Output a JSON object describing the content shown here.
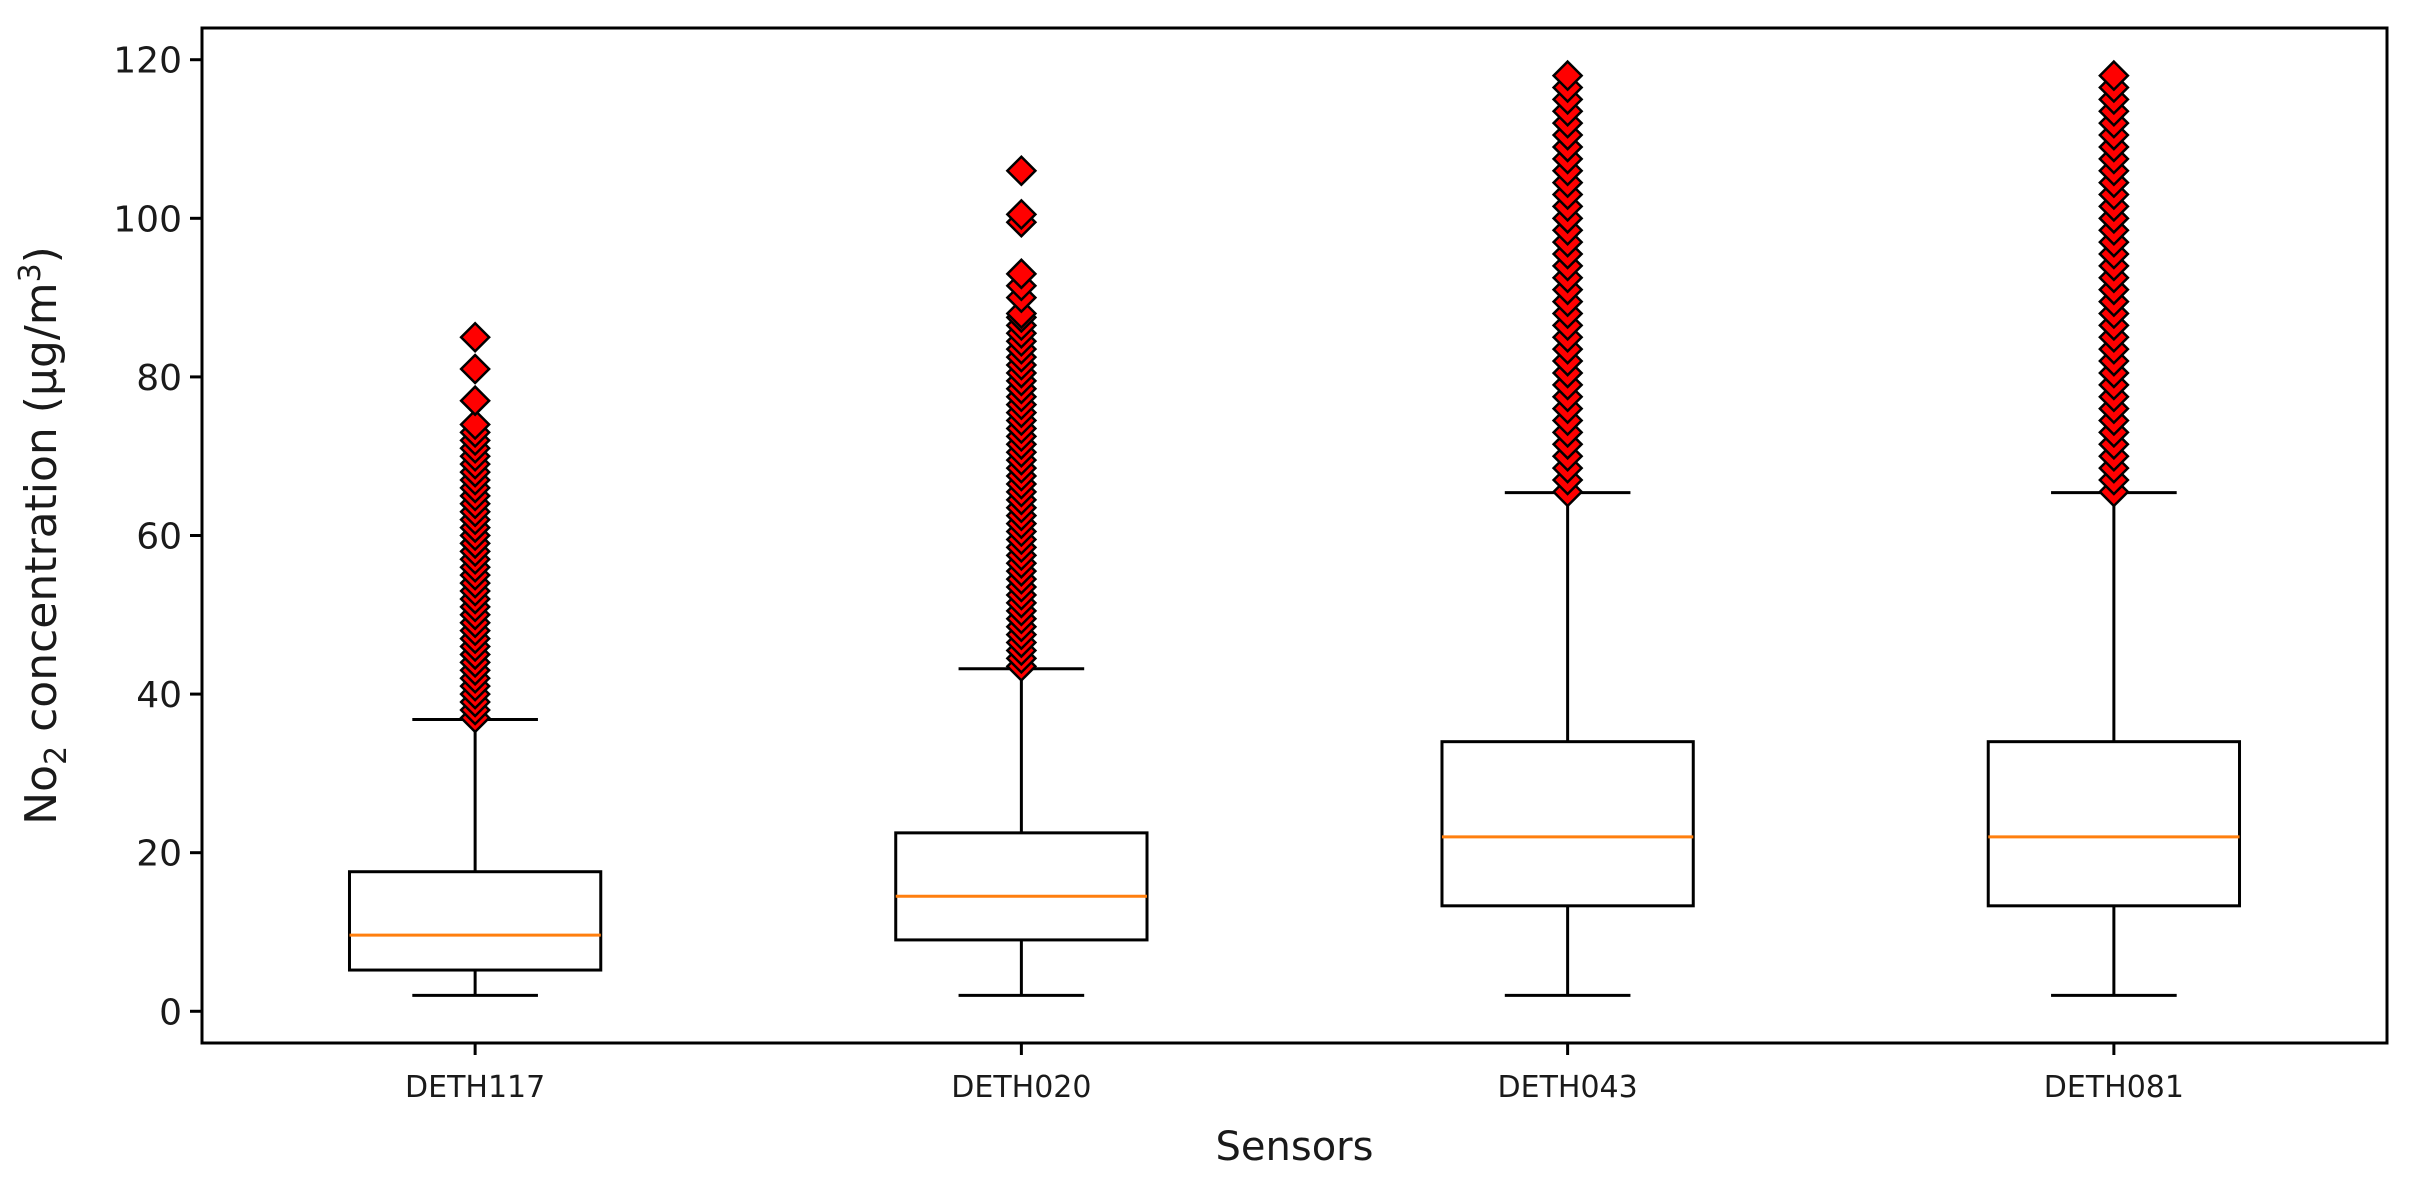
{
  "chart_data": {
    "type": "box",
    "xlabel": "Sensors",
    "ylabel": {
      "prefix": "No",
      "sub": "2",
      "middle": " concentration (μg/m",
      "sup": "3",
      "suffix": ")"
    },
    "ylim": [
      -4,
      124
    ],
    "yticks": [
      0,
      20,
      40,
      60,
      80,
      100,
      120
    ],
    "grid": false,
    "legend": "none",
    "colors": {
      "box": "#000000",
      "median": "#ff7f0e",
      "outlier_fill": "#ff0000",
      "outlier_edge": "#000000"
    },
    "categories": [
      "DETH117",
      "DETH020",
      "DETH043",
      "DETH081"
    ],
    "boxes": [
      {
        "label": "DETH117",
        "whisker_low": 2.0,
        "q1": 5.2,
        "median": 9.6,
        "q3": 17.6,
        "whisker_high": 36.8,
        "outliers": [
          37,
          38,
          39,
          40,
          41,
          42,
          43,
          44,
          45,
          46,
          47,
          48,
          49,
          50,
          51,
          52,
          53,
          54,
          55,
          56,
          57,
          58,
          59,
          60,
          61,
          62,
          63,
          64,
          65,
          66,
          67,
          68,
          69,
          70,
          71,
          72,
          73,
          74,
          77,
          81,
          85
        ]
      },
      {
        "label": "DETH020",
        "whisker_low": 2.0,
        "q1": 9.0,
        "median": 14.5,
        "q3": 22.5,
        "whisker_high": 43.2,
        "outliers": [
          43.5,
          44.5,
          45.5,
          46.5,
          47.5,
          48.5,
          49.5,
          50.5,
          51.5,
          52.5,
          53.5,
          54.5,
          55.5,
          56.5,
          57.5,
          58.5,
          59.5,
          60.5,
          61.5,
          62.5,
          63.5,
          64.5,
          65.5,
          66.5,
          67.5,
          68.5,
          69.5,
          70.5,
          71.5,
          72.5,
          73.5,
          74.5,
          75.5,
          76.5,
          77.5,
          78.5,
          79.5,
          80.5,
          81.5,
          82.5,
          83.5,
          84.5,
          85.5,
          86.5,
          87.5,
          88,
          90,
          91.5,
          93,
          99.5,
          100.5,
          106
        ]
      },
      {
        "label": "DETH043",
        "whisker_low": 2.0,
        "q1": 13.3,
        "median": 22.0,
        "q3": 34.0,
        "whisker_high": 65.4,
        "outliers": [
          65.5,
          67,
          68.5,
          70,
          71.5,
          73,
          74.5,
          76,
          77.5,
          79,
          80.5,
          82,
          83.5,
          85,
          86.5,
          88,
          89.5,
          91,
          92.5,
          94,
          95.5,
          97,
          98.5,
          100,
          101.5,
          103,
          104.5,
          106,
          107.5,
          109,
          110.5,
          112,
          113.5,
          115,
          116.5,
          118
        ]
      },
      {
        "label": "DETH081",
        "whisker_low": 2.0,
        "q1": 13.3,
        "median": 22.0,
        "q3": 34.0,
        "whisker_high": 65.4,
        "outliers": [
          65.5,
          67,
          68.5,
          70,
          71.5,
          73,
          74.5,
          76,
          77.5,
          79,
          80.5,
          82,
          83.5,
          85,
          86.5,
          88,
          89.5,
          91,
          92.5,
          94,
          95.5,
          97,
          98.5,
          100,
          101.5,
          103,
          104.5,
          106,
          107.5,
          109,
          110.5,
          112,
          113.5,
          115,
          116.5,
          118
        ]
      }
    ]
  }
}
